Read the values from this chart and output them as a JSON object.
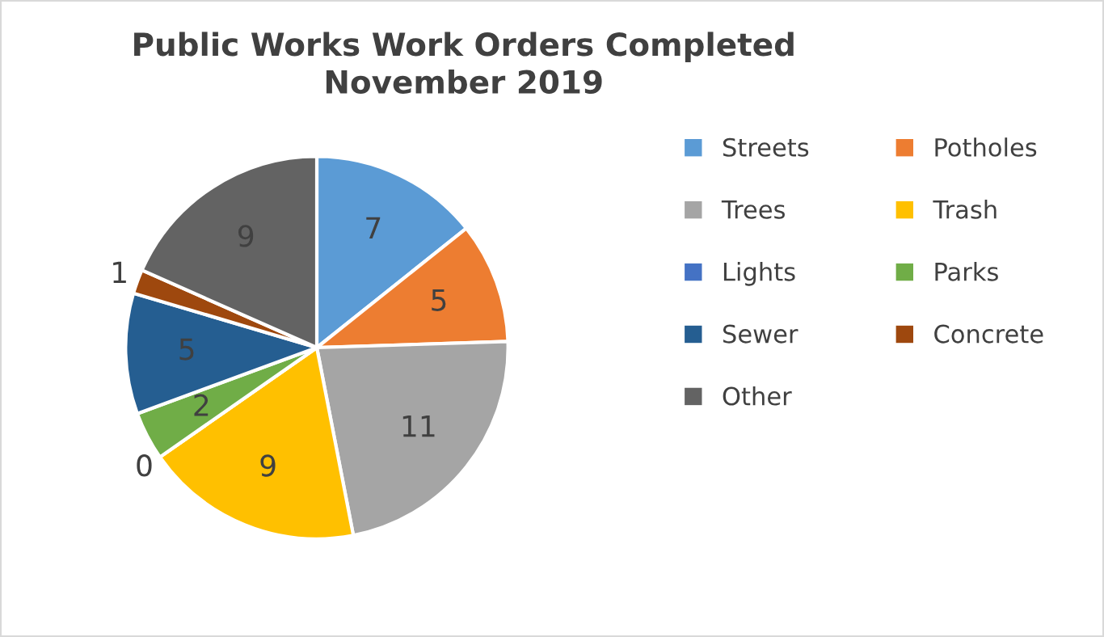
{
  "chart_data": {
    "type": "pie",
    "title": "Public Works Work Orders Completed\nNovember 2019",
    "categories": [
      "Streets",
      "Potholes",
      "Trees",
      "Trash",
      "Lights",
      "Parks",
      "Sewer",
      "Concrete",
      "Other"
    ],
    "values": [
      7,
      5,
      11,
      9,
      0,
      2,
      5,
      1,
      9
    ],
    "colors": [
      "#5b9bd5",
      "#ed7d31",
      "#a5a5a5",
      "#ffc000",
      "#4472c4",
      "#70ad47",
      "#255e91",
      "#9e480e",
      "#636363"
    ],
    "value_labels": [
      "7",
      "5",
      "11",
      "9",
      "0",
      "2",
      "5",
      "1",
      "9"
    ],
    "legend": "right"
  }
}
